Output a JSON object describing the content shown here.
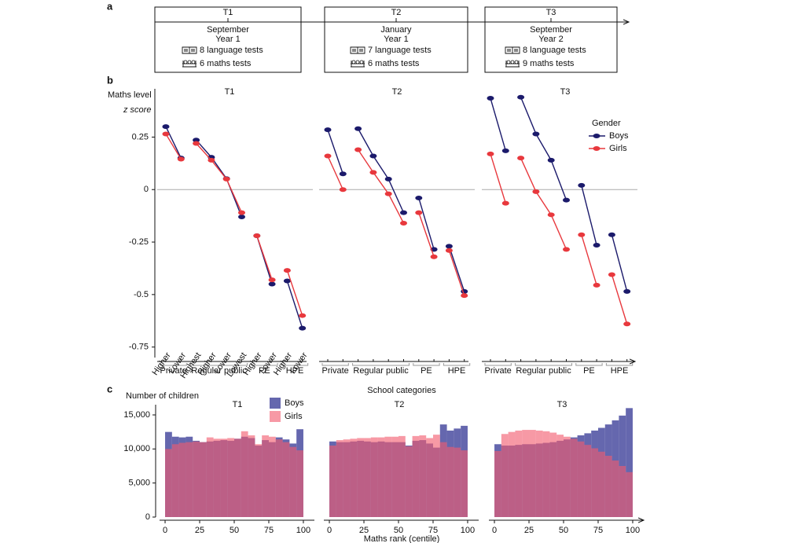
{
  "timeline": {
    "panel_label": "a",
    "points": [
      {
        "label": "T1",
        "lines": [
          "September",
          "Year 1"
        ],
        "tests": [
          "8 language tests",
          "6 maths tests"
        ]
      },
      {
        "label": "T2",
        "lines": [
          "January",
          "Year 1"
        ],
        "tests": [
          "7 language tests",
          "6 maths tests"
        ]
      },
      {
        "label": "T3",
        "lines": [
          "September",
          "Year 2"
        ],
        "tests": [
          "8 language tests",
          "9 maths tests"
        ]
      }
    ]
  },
  "chart_data": [
    {
      "type": "line",
      "panel_label": "b",
      "ylabel": [
        "Maths level",
        "z score"
      ],
      "xlabel": "School categories",
      "legend_title": "Gender",
      "series": [
        {
          "name": "Boys",
          "color": "#1b1a6b"
        },
        {
          "name": "Girls",
          "color": "#e8383d"
        }
      ],
      "groups": [
        {
          "name": "Private",
          "categories": [
            "Higher",
            "Lower"
          ]
        },
        {
          "name": "Regular public",
          "categories": [
            "Highest",
            "Higher",
            "Lower",
            "Lowest"
          ]
        },
        {
          "name": "PE",
          "categories": [
            "Higher",
            "Lower"
          ]
        },
        {
          "name": "HPE",
          "categories": [
            "Higher",
            "Lower"
          ]
        }
      ],
      "ylim": [
        -0.8,
        0.48
      ],
      "yticks": [
        -0.75,
        -0.5,
        -0.25,
        0,
        0.25
      ],
      "zero_line": true,
      "panels": [
        {
          "title": "T1",
          "series": [
            {
              "values": [
                0.3,
                0.15,
                0.236,
                0.154,
                0.052,
                -0.13,
                -0.22,
                -0.45,
                -0.435,
                -0.66
              ]
            },
            {
              "values": [
                0.265,
                0.145,
                0.22,
                0.14,
                0.05,
                -0.11,
                -0.22,
                -0.43,
                -0.385,
                -0.6
              ]
            }
          ]
        },
        {
          "title": "T2",
          "series": [
            {
              "values": [
                0.285,
                0.075,
                0.29,
                0.16,
                0.05,
                -0.11,
                -0.04,
                -0.285,
                -0.27,
                -0.485
              ]
            },
            {
              "values": [
                0.16,
                0.0,
                0.19,
                0.082,
                -0.02,
                -0.16,
                -0.11,
                -0.32,
                -0.29,
                -0.505
              ]
            }
          ]
        },
        {
          "title": "T3",
          "series": [
            {
              "values": [
                0.435,
                0.185,
                0.44,
                0.265,
                0.14,
                -0.05,
                0.02,
                -0.265,
                -0.215,
                -0.485
              ]
            },
            {
              "values": [
                0.17,
                -0.065,
                0.15,
                -0.01,
                -0.12,
                -0.285,
                -0.215,
                -0.455,
                -0.405,
                -0.64
              ]
            }
          ]
        }
      ]
    },
    {
      "type": "histogram",
      "panel_label": "c",
      "ylabel": "Number of children",
      "xlabel": "Maths rank (centile)",
      "series": [
        {
          "name": "Boys",
          "color": "#4a4ca0"
        },
        {
          "name": "Girls",
          "color": "#f25a6e"
        }
      ],
      "bins": [
        0,
        5,
        10,
        15,
        20,
        25,
        30,
        35,
        40,
        45,
        50,
        55,
        60,
        65,
        70,
        75,
        80,
        85,
        90,
        95,
        100
      ],
      "xlim": [
        -4,
        104
      ],
      "xticks": [
        0,
        25,
        50,
        75,
        100
      ],
      "ylim": [
        0,
        16500
      ],
      "yticks": [
        0,
        {
          "value": 5000,
          "label": "5,000"
        },
        {
          "value": 10000,
          "label": "10,000"
        },
        {
          "value": 15000,
          "label": "15,000"
        }
      ],
      "panels": [
        {
          "title": "T1",
          "series": [
            {
              "values": [
                12500,
                11800,
                11700,
                11800,
                11200,
                11000,
                11100,
                11200,
                11300,
                11200,
                11500,
                11800,
                11600,
                10500,
                11300,
                11000,
                11700,
                11400,
                10800,
                12900
              ]
            },
            {
              "values": [
                10000,
                10700,
                10900,
                11000,
                11100,
                11000,
                11700,
                11500,
                11500,
                11600,
                11500,
                12600,
                12000,
                10700,
                12000,
                11800,
                11400,
                11000,
                10300,
                9800
              ]
            }
          ]
        },
        {
          "title": "T2",
          "series": [
            {
              "values": [
                11100,
                11000,
                11000,
                11100,
                11200,
                11100,
                11000,
                11100,
                11000,
                11000,
                11000,
                10500,
                11200,
                11300,
                10800,
                10200,
                13600,
                12700,
                13000,
                13400
              ]
            },
            {
              "values": [
                10500,
                11300,
                11400,
                11500,
                11600,
                11600,
                11700,
                11700,
                11800,
                11800,
                11900,
                10400,
                11900,
                12000,
                11600,
                12100,
                11000,
                10300,
                10200,
                9800
              ]
            }
          ]
        },
        {
          "title": "T3",
          "series": [
            {
              "values": [
                10700,
                10500,
                10500,
                10600,
                10700,
                10700,
                10800,
                10900,
                11000,
                11200,
                11400,
                11700,
                12000,
                12300,
                12700,
                13100,
                13600,
                14200,
                14900,
                16000
              ]
            },
            {
              "values": [
                9700,
                12200,
                12500,
                12700,
                12800,
                12800,
                12700,
                12600,
                12400,
                12100,
                11800,
                11500,
                11100,
                10600,
                10100,
                9600,
                9000,
                8300,
                7500,
                6600
              ]
            }
          ]
        }
      ]
    }
  ]
}
